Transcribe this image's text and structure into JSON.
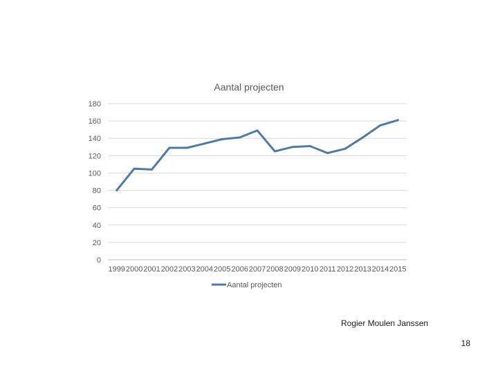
{
  "slide": {
    "author": "Rogier Moulen Janssen",
    "number": "18"
  },
  "chart_data": {
    "type": "line",
    "title": "Aantal projecten",
    "categories": [
      "1999",
      "2000",
      "2001",
      "2002",
      "2003",
      "2004",
      "2005",
      "2006",
      "2007",
      "2008",
      "2009",
      "2010",
      "2011",
      "2012",
      "2013",
      "2014",
      "2015"
    ],
    "series": [
      {
        "name": "Aantal projecten",
        "values": [
          80,
          105,
          104,
          129,
          129,
          134,
          139,
          141,
          149,
          125,
          130,
          131,
          123,
          128,
          141,
          155,
          161
        ]
      }
    ],
    "ylim": [
      0,
      180
    ],
    "yticks": [
      "0",
      "20",
      "40",
      "60",
      "80",
      "100",
      "120",
      "140",
      "160",
      "180"
    ],
    "grid": true,
    "legend": "bottom",
    "line_color": "#4f79a8",
    "grid_color": "#d9d9d9",
    "axis_color": "#bfbfbf"
  }
}
